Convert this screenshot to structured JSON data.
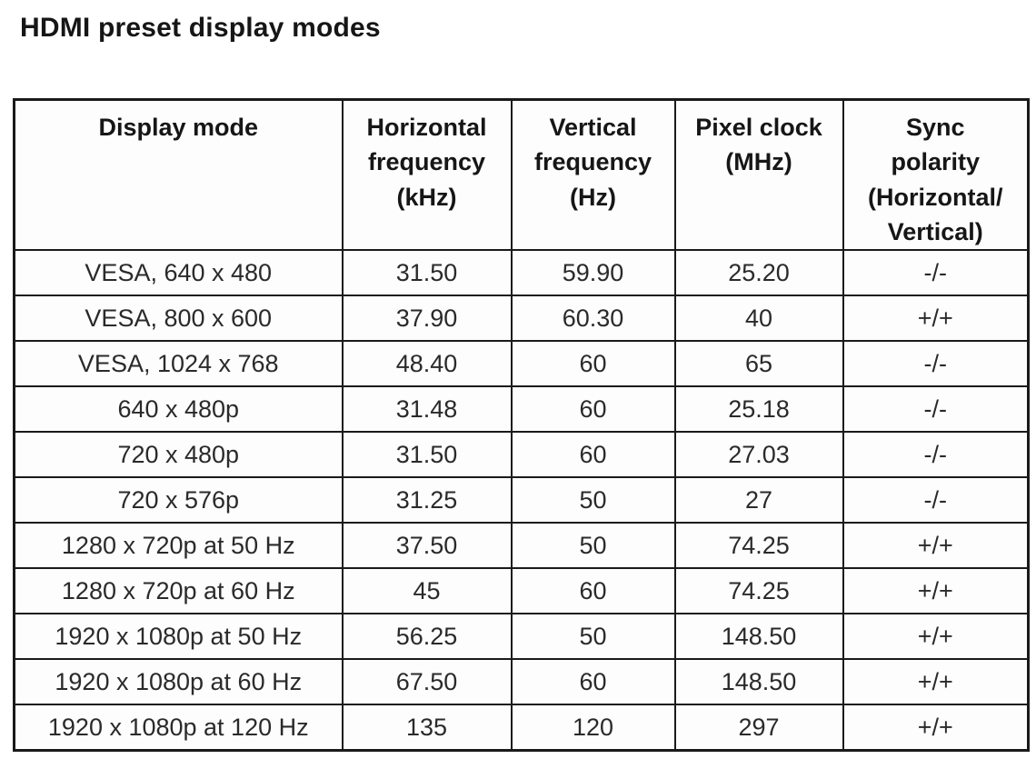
{
  "page": {
    "title": "HDMI preset display modes"
  },
  "table": {
    "headers": [
      "Display mode",
      "Horizontal\nfrequency\n(kHz)",
      "Vertical\nfrequency\n(Hz)",
      "Pixel clock\n(MHz)",
      "Sync\npolarity\n(Horizontal/\nVertical)"
    ],
    "rows": [
      [
        "VESA, 640 x 480",
        "31.50",
        "59.90",
        "25.20",
        "-/-"
      ],
      [
        "VESA, 800 x 600",
        "37.90",
        "60.30",
        "40",
        "+/+"
      ],
      [
        "VESA, 1024 x 768",
        "48.40",
        "60",
        "65",
        "-/-"
      ],
      [
        "640 x 480p",
        "31.48",
        "60",
        "25.18",
        "-/-"
      ],
      [
        "720 x 480p",
        "31.50",
        "60",
        "27.03",
        "-/-"
      ],
      [
        "720 x 576p",
        "31.25",
        "50",
        "27",
        "-/-"
      ],
      [
        "1280 x 720p at 50 Hz",
        "37.50",
        "50",
        "74.25",
        "+/+"
      ],
      [
        "1280 x 720p at 60 Hz",
        "45",
        "60",
        "74.25",
        "+/+"
      ],
      [
        "1920 x 1080p at 50 Hz",
        "56.25",
        "50",
        "148.50",
        "+/+"
      ],
      [
        "1920 x 1080p at 60 Hz",
        "67.50",
        "60",
        "148.50",
        "+/+"
      ],
      [
        "1920 x 1080p at 120 Hz",
        "135",
        "120",
        "297",
        "+/+"
      ]
    ],
    "colors": {
      "text": "#1a1a1a",
      "border": "#1a1a1a",
      "background": "#ffffff"
    }
  }
}
